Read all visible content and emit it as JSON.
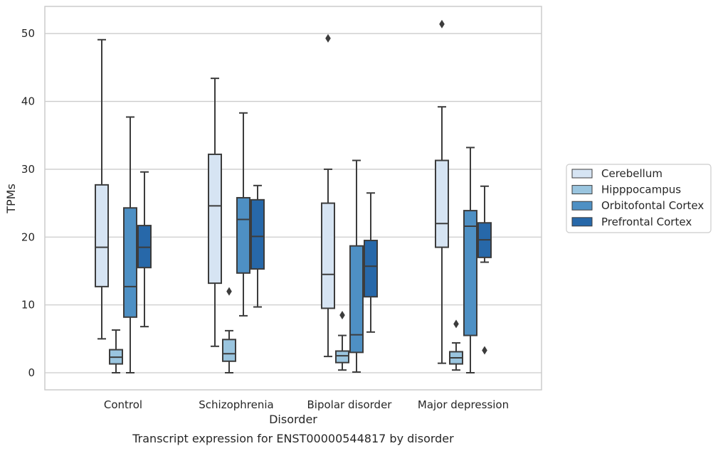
{
  "chart_data": {
    "type": "box",
    "title": "",
    "caption": "Transcript expression for ENST00000544817 by disorder",
    "xlabel": "Disorder",
    "ylabel": "TPMs",
    "ylim": [
      -2.5,
      54.5
    ],
    "yticks": [
      0,
      10,
      20,
      30,
      40,
      50
    ],
    "grid": "horizontal",
    "legend_position": "right",
    "categories": [
      "Control",
      "Schizophrenia",
      "Bipolar disorder",
      "Major depression"
    ],
    "series": [
      {
        "name": "Cerebellum",
        "color": "#d6e4f3",
        "boxes": [
          {
            "min": 5.0,
            "q1": 12.7,
            "median": 18.5,
            "q3": 27.7,
            "max": 49.1,
            "outliers": []
          },
          {
            "min": 3.9,
            "q1": 13.2,
            "median": 24.6,
            "q3": 32.2,
            "max": 43.4,
            "outliers": []
          },
          {
            "min": 2.4,
            "q1": 9.5,
            "median": 14.5,
            "q3": 25.0,
            "max": 30.0,
            "outliers": [
              49.3
            ]
          },
          {
            "min": 1.4,
            "q1": 18.5,
            "median": 22.0,
            "q3": 31.3,
            "max": 39.2,
            "outliers": [
              51.4
            ]
          }
        ]
      },
      {
        "name": "Hipppocampus",
        "color": "#9ac5df",
        "boxes": [
          {
            "min": 0.0,
            "q1": 1.3,
            "median": 2.3,
            "q3": 3.4,
            "max": 6.3,
            "outliers": []
          },
          {
            "min": 0.0,
            "q1": 1.7,
            "median": 2.8,
            "q3": 4.9,
            "max": 6.2,
            "outliers": [
              12.0
            ]
          },
          {
            "min": 0.4,
            "q1": 1.5,
            "median": 2.5,
            "q3": 3.2,
            "max": 5.5,
            "outliers": [
              8.5
            ]
          },
          {
            "min": 0.4,
            "q1": 1.3,
            "median": 2.2,
            "q3": 3.1,
            "max": 4.4,
            "outliers": [
              7.2
            ]
          }
        ]
      },
      {
        "name": "Orbitofontal Cortex",
        "color": "#4e90c4",
        "boxes": [
          {
            "min": 0.0,
            "q1": 8.2,
            "median": 12.7,
            "q3": 24.3,
            "max": 37.7,
            "outliers": []
          },
          {
            "min": 8.4,
            "q1": 14.7,
            "median": 22.6,
            "q3": 25.8,
            "max": 38.3,
            "outliers": []
          },
          {
            "min": 0.1,
            "q1": 3.0,
            "median": 5.6,
            "q3": 18.7,
            "max": 31.3,
            "outliers": []
          },
          {
            "min": 0.0,
            "q1": 5.5,
            "median": 21.6,
            "q3": 23.9,
            "max": 33.2,
            "outliers": []
          }
        ]
      },
      {
        "name": "Prefrontal Cortex",
        "color": "#2768a9",
        "boxes": [
          {
            "min": 6.8,
            "q1": 15.5,
            "median": 18.5,
            "q3": 21.7,
            "max": 29.6,
            "outliers": []
          },
          {
            "min": 9.7,
            "q1": 15.3,
            "median": 20.1,
            "q3": 25.5,
            "max": 27.6,
            "outliers": []
          },
          {
            "min": 6.0,
            "q1": 11.2,
            "median": 15.7,
            "q3": 19.5,
            "max": 26.5,
            "outliers": []
          },
          {
            "min": 16.3,
            "q1": 17.0,
            "median": 19.6,
            "q3": 22.1,
            "max": 27.5,
            "outliers": [
              3.3
            ]
          }
        ]
      }
    ]
  }
}
